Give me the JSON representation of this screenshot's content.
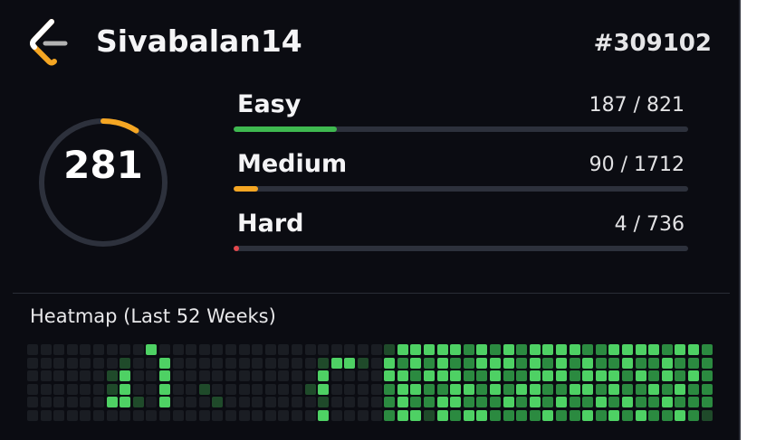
{
  "profile": {
    "username": "Sivabalan14",
    "rank": "#309102",
    "logo_icon": "leetcode-logo-icon"
  },
  "solved": {
    "total": "281",
    "ring_color": "#f5a623",
    "ring_track_color": "#2d313c",
    "ring_fraction": 0.09
  },
  "stats": [
    {
      "label": "Easy",
      "count": "187 / 821",
      "fraction": 0.228,
      "color": "#3fb950"
    },
    {
      "label": "Medium",
      "count": "90 / 1712",
      "fraction": 0.053,
      "color": "#f5a623"
    },
    {
      "label": "Hard",
      "count": "4 / 736",
      "fraction": 0.0054,
      "color": "#e5484d"
    }
  ],
  "heatmap": {
    "title": "Heatmap (Last 52 Weeks)",
    "level_colors": [
      "#1a1d23",
      "#1f4a2a",
      "#2b8a40",
      "#4ed164"
    ],
    "weeks": [
      [
        0,
        0,
        0,
        0,
        0,
        0
      ],
      [
        0,
        0,
        0,
        0,
        0,
        0
      ],
      [
        0,
        0,
        0,
        0,
        0,
        0
      ],
      [
        0,
        0,
        0,
        0,
        0,
        0
      ],
      [
        0,
        0,
        0,
        0,
        0,
        0
      ],
      [
        0,
        0,
        0,
        0,
        0,
        0
      ],
      [
        0,
        0,
        1,
        1,
        3,
        0
      ],
      [
        0,
        1,
        3,
        3,
        3,
        0
      ],
      [
        0,
        0,
        0,
        0,
        1,
        0
      ],
      [
        3,
        0,
        0,
        0,
        0,
        0
      ],
      [
        0,
        3,
        3,
        3,
        3,
        0
      ],
      [
        0,
        0,
        0,
        0,
        0,
        0
      ],
      [
        0,
        0,
        0,
        0,
        0,
        0
      ],
      [
        0,
        0,
        0,
        1,
        0,
        0
      ],
      [
        0,
        0,
        0,
        0,
        1,
        0
      ],
      [
        0,
        0,
        0,
        0,
        0,
        0
      ],
      [
        0,
        0,
        0,
        0,
        0,
        0
      ],
      [
        0,
        0,
        0,
        0,
        0,
        0
      ],
      [
        0,
        0,
        0,
        0,
        0,
        0
      ],
      [
        0,
        0,
        0,
        0,
        0,
        0
      ],
      [
        0,
        0,
        0,
        0,
        0,
        0
      ],
      [
        0,
        0,
        0,
        1,
        0,
        0
      ],
      [
        0,
        1,
        3,
        3,
        1,
        3
      ],
      [
        0,
        3,
        0,
        0,
        0,
        0
      ],
      [
        0,
        3,
        0,
        0,
        0,
        0
      ],
      [
        0,
        1,
        0,
        0,
        0,
        0
      ],
      [
        0,
        0,
        0,
        0,
        0,
        0
      ],
      [
        1,
        3,
        3,
        2,
        2,
        2
      ],
      [
        3,
        2,
        3,
        3,
        3,
        3
      ],
      [
        3,
        3,
        2,
        3,
        2,
        3
      ],
      [
        3,
        2,
        3,
        2,
        2,
        1
      ],
      [
        3,
        3,
        3,
        2,
        3,
        3
      ],
      [
        3,
        2,
        3,
        3,
        3,
        2
      ],
      [
        2,
        2,
        2,
        3,
        2,
        3
      ],
      [
        3,
        3,
        2,
        2,
        2,
        3
      ],
      [
        2,
        3,
        3,
        3,
        2,
        2
      ],
      [
        3,
        3,
        2,
        2,
        3,
        2
      ],
      [
        2,
        2,
        2,
        3,
        2,
        2
      ],
      [
        3,
        3,
        3,
        3,
        3,
        2
      ],
      [
        3,
        2,
        3,
        2,
        2,
        3
      ],
      [
        3,
        3,
        3,
        2,
        3,
        2
      ],
      [
        3,
        2,
        2,
        3,
        2,
        2
      ],
      [
        2,
        3,
        3,
        3,
        2,
        3
      ],
      [
        2,
        2,
        3,
        2,
        3,
        2
      ],
      [
        3,
        2,
        3,
        3,
        2,
        3
      ],
      [
        3,
        3,
        2,
        2,
        3,
        2
      ],
      [
        3,
        2,
        3,
        2,
        2,
        3
      ],
      [
        3,
        2,
        2,
        3,
        2,
        2
      ],
      [
        2,
        3,
        3,
        2,
        3,
        2
      ],
      [
        3,
        2,
        2,
        3,
        2,
        3
      ],
      [
        3,
        2,
        3,
        2,
        2,
        2
      ],
      [
        2,
        2,
        2,
        2,
        2,
        1
      ]
    ]
  }
}
